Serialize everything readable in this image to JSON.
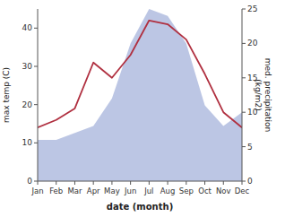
{
  "chart_data": {
    "type": "line",
    "xlabel": "date (month)",
    "ylabel": "max temp (C)",
    "y2label": "med. precipitation\n(kg/m2)",
    "categories": [
      "Jan",
      "Feb",
      "Mar",
      "Apr",
      "May",
      "Jun",
      "Jul",
      "Aug",
      "Sep",
      "Oct",
      "Nov",
      "Dec"
    ],
    "series": [
      {
        "type": "line",
        "color": "#b03040",
        "values": [
          14,
          16,
          19,
          31,
          27,
          33,
          42,
          41,
          37,
          28,
          18,
          14
        ]
      },
      {
        "type": "area",
        "axis": "y2",
        "color": "#b0bcdf",
        "values": [
          6,
          6,
          7,
          8,
          12,
          20,
          25,
          24,
          20,
          11,
          8,
          10
        ]
      }
    ],
    "ylim": [
      0,
      45
    ],
    "yticks": [
      0,
      10,
      20,
      30,
      40
    ],
    "y2lim": [
      0,
      25
    ],
    "y2ticks": [
      0,
      5,
      10,
      15,
      20,
      25
    ]
  }
}
